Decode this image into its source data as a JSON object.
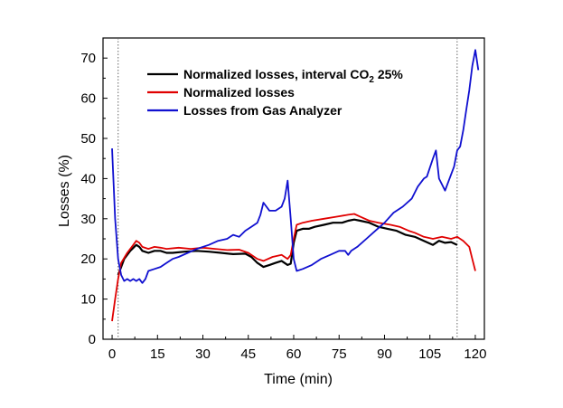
{
  "chart_data": {
    "type": "line",
    "xlabel": "Time (min)",
    "ylabel": "Losses (%)",
    "xlim": [
      -3,
      123
    ],
    "ylim": [
      0,
      75
    ],
    "x_ticks": [
      "0",
      "15",
      "30",
      "45",
      "60",
      "75",
      "90",
      "105",
      "120"
    ],
    "y_ticks": [
      "0",
      "10",
      "20",
      "30",
      "40",
      "50",
      "60",
      "70"
    ],
    "vertical_reference_lines": [
      2,
      114
    ],
    "legend_position": "top-center",
    "series": [
      {
        "name": "Normalized losses, interval CO2 25%",
        "color": "#000000",
        "points": [
          [
            2,
            16
          ],
          [
            3,
            18
          ],
          [
            4,
            20
          ],
          [
            6,
            22
          ],
          [
            8,
            23.5
          ],
          [
            9,
            23
          ],
          [
            10,
            22
          ],
          [
            12,
            21.5
          ],
          [
            14,
            22
          ],
          [
            16,
            22
          ],
          [
            18,
            21.5
          ],
          [
            20,
            21.5
          ],
          [
            24,
            21.8
          ],
          [
            28,
            22
          ],
          [
            32,
            21.8
          ],
          [
            36,
            21.5
          ],
          [
            40,
            21.2
          ],
          [
            44,
            21.3
          ],
          [
            46,
            20.5
          ],
          [
            48,
            19
          ],
          [
            50,
            18
          ],
          [
            52,
            18.5
          ],
          [
            54,
            19
          ],
          [
            56,
            19.5
          ],
          [
            58,
            18.5
          ],
          [
            59,
            18.8
          ],
          [
            60,
            24
          ],
          [
            61,
            27
          ],
          [
            63,
            27.5
          ],
          [
            65,
            27.5
          ],
          [
            67,
            28
          ],
          [
            70,
            28.5
          ],
          [
            73,
            29
          ],
          [
            76,
            29
          ],
          [
            78,
            29.5
          ],
          [
            80,
            29.8
          ],
          [
            82,
            29.5
          ],
          [
            85,
            29
          ],
          [
            88,
            28
          ],
          [
            91,
            27.5
          ],
          [
            94,
            27
          ],
          [
            97,
            26
          ],
          [
            100,
            25.5
          ],
          [
            103,
            24.5
          ],
          [
            106,
            23.5
          ],
          [
            108,
            24.5
          ],
          [
            110,
            24
          ],
          [
            112,
            24.2
          ],
          [
            114,
            23.5
          ]
        ]
      },
      {
        "name": "Normalized losses",
        "color": "#e00000",
        "points": [
          [
            0,
            4.5
          ],
          [
            1,
            10
          ],
          [
            2,
            15
          ],
          [
            3,
            19
          ],
          [
            5,
            21.5
          ],
          [
            7,
            23.5
          ],
          [
            8,
            24.5
          ],
          [
            9,
            24
          ],
          [
            10,
            23
          ],
          [
            12,
            22.5
          ],
          [
            14,
            23
          ],
          [
            16,
            22.8
          ],
          [
            18,
            22.5
          ],
          [
            22,
            22.8
          ],
          [
            26,
            22.5
          ],
          [
            30,
            22.8
          ],
          [
            34,
            22.5
          ],
          [
            38,
            22.2
          ],
          [
            42,
            22.3
          ],
          [
            45,
            21.5
          ],
          [
            48,
            20
          ],
          [
            50,
            19.5
          ],
          [
            53,
            20.5
          ],
          [
            56,
            21
          ],
          [
            58,
            20
          ],
          [
            59,
            21
          ],
          [
            60,
            25
          ],
          [
            61,
            28.5
          ],
          [
            63,
            29
          ],
          [
            66,
            29.5
          ],
          [
            70,
            30
          ],
          [
            74,
            30.5
          ],
          [
            78,
            31
          ],
          [
            80,
            31.2
          ],
          [
            82,
            30.5
          ],
          [
            85,
            29.5
          ],
          [
            88,
            29
          ],
          [
            92,
            28.5
          ],
          [
            95,
            28
          ],
          [
            98,
            27
          ],
          [
            100,
            26.5
          ],
          [
            103,
            25.5
          ],
          [
            106,
            25
          ],
          [
            109,
            25.5
          ],
          [
            112,
            25
          ],
          [
            114,
            25.5
          ],
          [
            116,
            24.5
          ],
          [
            118,
            23
          ],
          [
            119,
            20
          ],
          [
            120,
            17
          ]
        ]
      },
      {
        "name": "Losses from Gas Analyzer",
        "color": "#1010d0",
        "points": [
          [
            0,
            47.5
          ],
          [
            1,
            30
          ],
          [
            2,
            20
          ],
          [
            3,
            16
          ],
          [
            4,
            14.5
          ],
          [
            5,
            15
          ],
          [
            6,
            14.5
          ],
          [
            7,
            15
          ],
          [
            8,
            14.5
          ],
          [
            9,
            15
          ],
          [
            10,
            14
          ],
          [
            11,
            15
          ],
          [
            12,
            17
          ],
          [
            14,
            17.5
          ],
          [
            16,
            18
          ],
          [
            18,
            19
          ],
          [
            20,
            20
          ],
          [
            22,
            20.5
          ],
          [
            25,
            21.5
          ],
          [
            28,
            22.5
          ],
          [
            32,
            23.5
          ],
          [
            35,
            24.5
          ],
          [
            38,
            25
          ],
          [
            40,
            26
          ],
          [
            42,
            25.5
          ],
          [
            44,
            27
          ],
          [
            46,
            28
          ],
          [
            48,
            29
          ],
          [
            49,
            31
          ],
          [
            50,
            34
          ],
          [
            52,
            32
          ],
          [
            54,
            32
          ],
          [
            56,
            33
          ],
          [
            57,
            35
          ],
          [
            58,
            39.5
          ],
          [
            59,
            30
          ],
          [
            60,
            20
          ],
          [
            61,
            17
          ],
          [
            63,
            17.5
          ],
          [
            66,
            18.5
          ],
          [
            69,
            20
          ],
          [
            72,
            21
          ],
          [
            75,
            22
          ],
          [
            77,
            22
          ],
          [
            78,
            21
          ],
          [
            79,
            22
          ],
          [
            81,
            23
          ],
          [
            84,
            25
          ],
          [
            87,
            27
          ],
          [
            90,
            29
          ],
          [
            93,
            31.5
          ],
          [
            96,
            33
          ],
          [
            99,
            35
          ],
          [
            101,
            38
          ],
          [
            103,
            40
          ],
          [
            104,
            40.5
          ],
          [
            106,
            45
          ],
          [
            107,
            47
          ],
          [
            108,
            40
          ],
          [
            110,
            37
          ],
          [
            111,
            39
          ],
          [
            113,
            43
          ],
          [
            114,
            47
          ],
          [
            115,
            48
          ],
          [
            116,
            52
          ],
          [
            117,
            57
          ],
          [
            118,
            62
          ],
          [
            119,
            68
          ],
          [
            120,
            72
          ],
          [
            121,
            67
          ]
        ]
      }
    ]
  }
}
